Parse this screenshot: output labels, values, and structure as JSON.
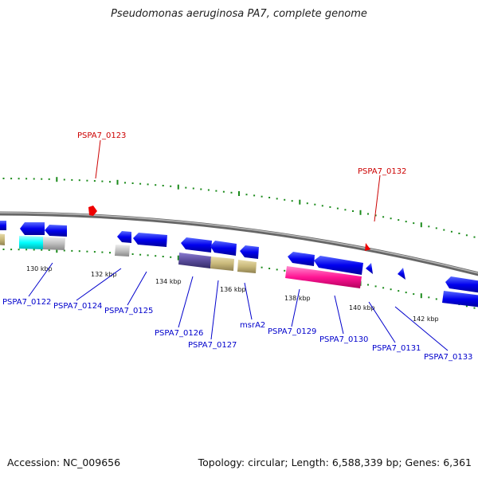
{
  "title": "Pseudomonas aeruginosa PA7, complete genome",
  "footer": {
    "accession": "Accession: NC_009656",
    "summary": "Topology: circular; Length: 6,588,339 bp; Genes: 6,361"
  },
  "ticks": [
    "130 kbp",
    "132 kbp",
    "134 kbp",
    "136 kbp",
    "138 kbp",
    "140 kbp",
    "142 kbp"
  ],
  "labels": [
    {
      "id": "PSPA7_0123",
      "text": "PSPA7_0123",
      "color": "#cc0000"
    },
    {
      "id": "PSPA7_0132",
      "text": "PSPA7_0132",
      "color": "#cc0000"
    },
    {
      "id": "PSPA7_0122",
      "text": "PSPA7_0122",
      "color": "#0000cc"
    },
    {
      "id": "PSPA7_0124",
      "text": "PSPA7_0124",
      "color": "#0000cc"
    },
    {
      "id": "PSPA7_0125",
      "text": "PSPA7_0125",
      "color": "#0000cc"
    },
    {
      "id": "PSPA7_0126",
      "text": "PSPA7_0126",
      "color": "#0000cc"
    },
    {
      "id": "PSPA7_0127",
      "text": "PSPA7_0127",
      "color": "#0000cc"
    },
    {
      "id": "msrA2",
      "text": "msrA2",
      "color": "#0000cc"
    },
    {
      "id": "PSPA7_0129",
      "text": "PSPA7_0129",
      "color": "#0000cc"
    },
    {
      "id": "PSPA7_0130",
      "text": "PSPA7_0130",
      "color": "#0000cc"
    },
    {
      "id": "PSPA7_0131",
      "text": "PSPA7_0131",
      "color": "#0000cc"
    },
    {
      "id": "PSPA7_0133",
      "text": "PSPA7_0133",
      "color": "#0000cc"
    }
  ],
  "colors": {
    "gene": "#0000ee",
    "trna_marker": "#ee0000",
    "backbone": "#888888",
    "tick": "#1a8a1a",
    "cyan": "#00ffff",
    "grey": "#c0c0c0",
    "olive": "#c8b87a",
    "purple": "#5a4c9c",
    "pink": "#ff1493"
  }
}
